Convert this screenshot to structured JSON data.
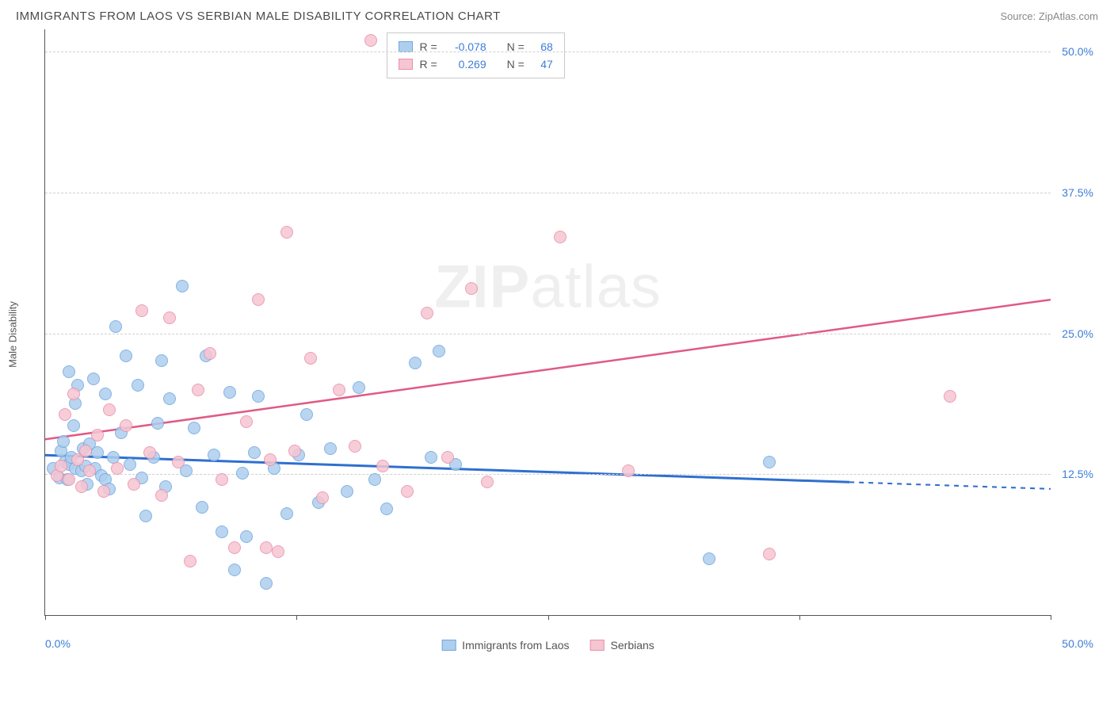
{
  "title": "IMMIGRANTS FROM LAOS VS SERBIAN MALE DISABILITY CORRELATION CHART",
  "source": "Source: ZipAtlas.com",
  "watermark": {
    "bold": "ZIP",
    "rest": "atlas"
  },
  "chart": {
    "type": "scatter",
    "ylabel": "Male Disability",
    "xlim": [
      0,
      50
    ],
    "ylim": [
      0,
      52
    ],
    "xticks_visible": [
      0,
      12.5,
      25,
      37.5,
      50
    ],
    "xtick_labels": {
      "left": "0.0%",
      "right": "50.0%"
    },
    "yticks": [
      {
        "v": 12.5,
        "label": "12.5%"
      },
      {
        "v": 25.0,
        "label": "25.0%"
      },
      {
        "v": 37.5,
        "label": "37.5%"
      },
      {
        "v": 50.0,
        "label": "50.0%"
      }
    ],
    "grid_color": "#d0d0d0",
    "axis_color": "#555555",
    "background_color": "#ffffff",
    "marker_radius": 8,
    "series": [
      {
        "name": "Immigrants from Laos",
        "fill": "#aeceee",
        "stroke": "#6fa7df",
        "R": "-0.078",
        "N": "68",
        "trend": {
          "y_at_x0": 14.2,
          "y_at_x50": 11.2,
          "color": "#2f6fd0",
          "width": 3,
          "dash_after_x": 40
        },
        "points": [
          {
            "x": 0.4,
            "y": 13.0
          },
          {
            "x": 0.7,
            "y": 12.2
          },
          {
            "x": 0.8,
            "y": 14.6
          },
          {
            "x": 0.9,
            "y": 15.4
          },
          {
            "x": 1.0,
            "y": 13.6
          },
          {
            "x": 1.1,
            "y": 12.0
          },
          {
            "x": 1.2,
            "y": 13.4
          },
          {
            "x": 1.2,
            "y": 21.6
          },
          {
            "x": 1.3,
            "y": 14.0
          },
          {
            "x": 1.4,
            "y": 16.8
          },
          {
            "x": 1.5,
            "y": 13.0
          },
          {
            "x": 1.5,
            "y": 18.8
          },
          {
            "x": 1.6,
            "y": 20.4
          },
          {
            "x": 1.8,
            "y": 12.8
          },
          {
            "x": 1.9,
            "y": 14.8
          },
          {
            "x": 2.0,
            "y": 13.2
          },
          {
            "x": 2.1,
            "y": 11.6
          },
          {
            "x": 2.2,
            "y": 15.2
          },
          {
            "x": 2.4,
            "y": 21.0
          },
          {
            "x": 2.5,
            "y": 13.0
          },
          {
            "x": 2.6,
            "y": 14.4
          },
          {
            "x": 2.8,
            "y": 12.4
          },
          {
            "x": 3.0,
            "y": 12.0
          },
          {
            "x": 3.0,
            "y": 19.6
          },
          {
            "x": 3.2,
            "y": 11.2
          },
          {
            "x": 3.4,
            "y": 14.0
          },
          {
            "x": 3.5,
            "y": 25.6
          },
          {
            "x": 3.8,
            "y": 16.2
          },
          {
            "x": 4.0,
            "y": 23.0
          },
          {
            "x": 4.2,
            "y": 13.4
          },
          {
            "x": 4.6,
            "y": 20.4
          },
          {
            "x": 4.8,
            "y": 12.2
          },
          {
            "x": 5.0,
            "y": 8.8
          },
          {
            "x": 5.4,
            "y": 14.0
          },
          {
            "x": 5.6,
            "y": 17.0
          },
          {
            "x": 5.8,
            "y": 22.6
          },
          {
            "x": 6.0,
            "y": 11.4
          },
          {
            "x": 6.2,
            "y": 19.2
          },
          {
            "x": 6.8,
            "y": 29.2
          },
          {
            "x": 7.0,
            "y": 12.8
          },
          {
            "x": 7.4,
            "y": 16.6
          },
          {
            "x": 7.8,
            "y": 9.6
          },
          {
            "x": 8.0,
            "y": 23.0
          },
          {
            "x": 8.4,
            "y": 14.2
          },
          {
            "x": 8.8,
            "y": 7.4
          },
          {
            "x": 9.2,
            "y": 19.8
          },
          {
            "x": 9.4,
            "y": 4.0
          },
          {
            "x": 9.8,
            "y": 12.6
          },
          {
            "x": 10.0,
            "y": 7.0
          },
          {
            "x": 10.4,
            "y": 14.4
          },
          {
            "x": 10.6,
            "y": 19.4
          },
          {
            "x": 11.0,
            "y": 2.8
          },
          {
            "x": 11.4,
            "y": 13.0
          },
          {
            "x": 12.0,
            "y": 9.0
          },
          {
            "x": 12.6,
            "y": 14.2
          },
          {
            "x": 13.0,
            "y": 17.8
          },
          {
            "x": 13.6,
            "y": 10.0
          },
          {
            "x": 14.2,
            "y": 14.8
          },
          {
            "x": 15.0,
            "y": 11.0
          },
          {
            "x": 15.6,
            "y": 20.2
          },
          {
            "x": 16.4,
            "y": 12.0
          },
          {
            "x": 17.0,
            "y": 9.4
          },
          {
            "x": 18.4,
            "y": 22.4
          },
          {
            "x": 19.2,
            "y": 14.0
          },
          {
            "x": 19.6,
            "y": 23.4
          },
          {
            "x": 20.4,
            "y": 13.4
          },
          {
            "x": 33.0,
            "y": 5.0
          },
          {
            "x": 36.0,
            "y": 13.6
          }
        ]
      },
      {
        "name": "Serbians",
        "fill": "#f6c5d2",
        "stroke": "#e98fab",
        "R": "0.269",
        "N": "47",
        "trend": {
          "y_at_x0": 15.6,
          "y_at_x50": 28.0,
          "color": "#e05a85",
          "width": 2.5,
          "dash_after_x": 50
        },
        "points": [
          {
            "x": 0.6,
            "y": 12.4
          },
          {
            "x": 0.8,
            "y": 13.2
          },
          {
            "x": 1.0,
            "y": 17.8
          },
          {
            "x": 1.2,
            "y": 12.0
          },
          {
            "x": 1.4,
            "y": 19.6
          },
          {
            "x": 1.6,
            "y": 13.8
          },
          {
            "x": 1.8,
            "y": 11.4
          },
          {
            "x": 2.0,
            "y": 14.6
          },
          {
            "x": 2.2,
            "y": 12.8
          },
          {
            "x": 2.6,
            "y": 16.0
          },
          {
            "x": 2.9,
            "y": 11.0
          },
          {
            "x": 3.2,
            "y": 18.2
          },
          {
            "x": 3.6,
            "y": 13.0
          },
          {
            "x": 4.0,
            "y": 16.8
          },
          {
            "x": 4.4,
            "y": 11.6
          },
          {
            "x": 4.8,
            "y": 27.0
          },
          {
            "x": 5.2,
            "y": 14.4
          },
          {
            "x": 5.8,
            "y": 10.6
          },
          {
            "x": 6.2,
            "y": 26.4
          },
          {
            "x": 6.6,
            "y": 13.6
          },
          {
            "x": 7.2,
            "y": 4.8
          },
          {
            "x": 7.6,
            "y": 20.0
          },
          {
            "x": 8.2,
            "y": 23.2
          },
          {
            "x": 8.8,
            "y": 12.0
          },
          {
            "x": 9.4,
            "y": 6.0
          },
          {
            "x": 10.0,
            "y": 17.2
          },
          {
            "x": 10.6,
            "y": 28.0
          },
          {
            "x": 11.2,
            "y": 13.8
          },
          {
            "x": 11.6,
            "y": 5.6
          },
          {
            "x": 12.0,
            "y": 34.0
          },
          {
            "x": 12.4,
            "y": 14.6
          },
          {
            "x": 13.2,
            "y": 22.8
          },
          {
            "x": 13.8,
            "y": 10.4
          },
          {
            "x": 14.6,
            "y": 20.0
          },
          {
            "x": 15.4,
            "y": 15.0
          },
          {
            "x": 16.2,
            "y": 51.0
          },
          {
            "x": 16.8,
            "y": 13.2
          },
          {
            "x": 18.0,
            "y": 11.0
          },
          {
            "x": 19.0,
            "y": 26.8
          },
          {
            "x": 20.0,
            "y": 14.0
          },
          {
            "x": 21.2,
            "y": 29.0
          },
          {
            "x": 22.0,
            "y": 11.8
          },
          {
            "x": 25.6,
            "y": 33.6
          },
          {
            "x": 29.0,
            "y": 12.8
          },
          {
            "x": 36.0,
            "y": 5.4
          },
          {
            "x": 45.0,
            "y": 19.4
          },
          {
            "x": 11.0,
            "y": 6.0
          }
        ]
      }
    ],
    "legend_top_stats_color": "#3b7dd8",
    "tick_label_color": "#3b7dd8"
  }
}
